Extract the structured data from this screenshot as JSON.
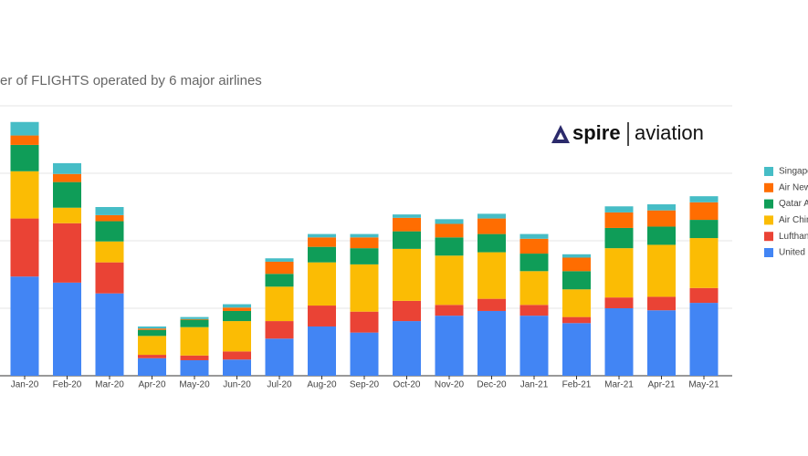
{
  "chart_data": {
    "type": "stacked_bar",
    "title": "er of FLIGHTS operated by 6 major airlines",
    "categories": [
      "Jan-20",
      "Feb-20",
      "Mar-20",
      "Apr-20",
      "May-20",
      "Jun-20",
      "Jul-20",
      "Aug-20",
      "Sep-20",
      "Oct-20",
      "Nov-20",
      "Dec-20",
      "Jan-21",
      "Feb-21",
      "Mar-21",
      "Apr-21",
      "May-21"
    ],
    "series": [
      {
        "name": "United",
        "color": "#4285f4",
        "values": [
          147,
          138,
          122,
          26,
          23,
          24,
          55,
          73,
          64,
          81,
          89,
          96,
          89,
          78,
          100,
          97,
          108
        ]
      },
      {
        "name": "Lufthan",
        "color": "#ea4335",
        "values": [
          86,
          88,
          46,
          5,
          7,
          12,
          26,
          31,
          31,
          30,
          16,
          18,
          16,
          9,
          16,
          20,
          22
        ]
      },
      {
        "name": "Air Chin",
        "color": "#fbbc04",
        "values": [
          70,
          23,
          31,
          28,
          42,
          45,
          51,
          64,
          70,
          77,
          73,
          69,
          50,
          41,
          73,
          77,
          74
        ]
      },
      {
        "name": "Qatar A",
        "color": "#0f9d58",
        "values": [
          39,
          38,
          30,
          9,
          11,
          15,
          19,
          23,
          24,
          26,
          27,
          27,
          26,
          27,
          30,
          27,
          27
        ]
      },
      {
        "name": "Air New",
        "color": "#ff6d01",
        "values": [
          14,
          12,
          9,
          2,
          1,
          5,
          18,
          14,
          16,
          20,
          20,
          23,
          22,
          20,
          23,
          24,
          26
        ]
      },
      {
        "name": "Singapo",
        "color": "#46bdc6",
        "values": [
          20,
          16,
          12,
          3,
          3,
          5,
          5,
          5,
          5,
          5,
          7,
          7,
          7,
          5,
          9,
          9,
          9
        ]
      }
    ],
    "ylim": [
      0,
      400
    ],
    "yticks": [
      0,
      100,
      200,
      300,
      400
    ],
    "grid": true
  },
  "logo": {
    "brand": "spire",
    "product": "aviation"
  }
}
